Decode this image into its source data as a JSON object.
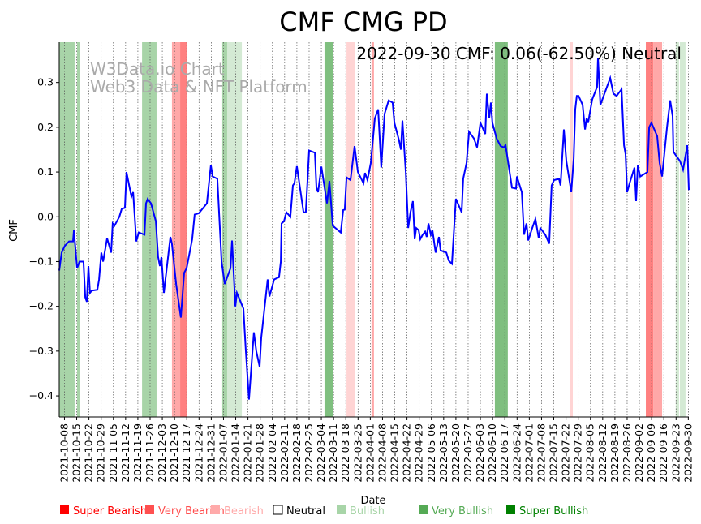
{
  "chart_data": {
    "type": "line",
    "title": "CMF CMG PD",
    "annotation": "2022-09-30 CMF: 0.06(-62.50%) Neutral",
    "watermark": [
      "W3Data.io Chart",
      "Web3 Data & NFT Platform"
    ],
    "xlabel": "Date",
    "ylabel": "CMF",
    "x_unit": "days since 2021-10-05",
    "xlim": [
      0,
      360.3
    ],
    "ylim": [
      -0.447,
      0.39
    ],
    "yticks": [
      0.3,
      0.2,
      0.1,
      0.0,
      -0.1,
      -0.2,
      -0.3,
      -0.4
    ],
    "ytick_labels": [
      "0.3",
      "0.2",
      "0.1",
      "0.0",
      "−0.1",
      "−0.2",
      "−0.3",
      "−0.4"
    ],
    "xtick_first_day": 3,
    "xtick_step_days": 7,
    "xtick_labels": [
      "2021-10-08",
      "2021-10-15",
      "2021-10-22",
      "2021-10-29",
      "2021-11-05",
      "2021-11-12",
      "2021-11-19",
      "2021-11-26",
      "2021-12-03",
      "2021-12-10",
      "2021-12-17",
      "2021-12-24",
      "2021-12-31",
      "2022-01-07",
      "2022-01-14",
      "2022-01-21",
      "2022-01-28",
      "2022-02-04",
      "2022-02-11",
      "2022-02-18",
      "2022-02-25",
      "2022-03-04",
      "2022-03-11",
      "2022-03-18",
      "2022-03-25",
      "2022-04-01",
      "2022-04-08",
      "2022-04-15",
      "2022-04-22",
      "2022-04-29",
      "2022-05-06",
      "2022-05-13",
      "2022-05-20",
      "2022-05-27",
      "2022-06-03",
      "2022-06-10",
      "2022-06-17",
      "2022-06-24",
      "2022-07-01",
      "2022-07-08",
      "2022-07-15",
      "2022-07-22",
      "2022-07-29",
      "2022-08-05",
      "2022-08-12",
      "2022-08-19",
      "2022-08-26",
      "2022-09-02",
      "2022-09-09",
      "2022-09-16",
      "2022-09-23",
      "2022-09-30"
    ],
    "series": [
      {
        "name": "CMF",
        "color": "#0000ff",
        "x": [
          0,
          1.4,
          3.2,
          5.6,
          7.9,
          8.4,
          10.2,
          11.6,
          13.9,
          14.9,
          15.8,
          16.7,
          17.6,
          18.6,
          21.8,
          22.8,
          24.1,
          25.1,
          27.4,
          29.7,
          30.6,
          31.6,
          34.4,
          35.8,
          37.6,
          38.5,
          41.3,
          42.3,
          44.1,
          45.5,
          48.8,
          49.7,
          50.6,
          52.5,
          55.3,
          56.6,
          57.6,
          58.5,
          59.9,
          63.6,
          64.5,
          66.9,
          69.6,
          71.5,
          72.9,
          76.1,
          77.5,
          79.9,
          84.5,
          86.8,
          87.8,
          90.5,
          92.9,
          94.7,
          98,
          98.9,
          100.8,
          101.7,
          105.4,
          106.8,
          108.6,
          111.4,
          112.8,
          114.7,
          115.6,
          119.3,
          120.3,
          123,
          125.8,
          126.8,
          127.2,
          128.6,
          130,
          132.3,
          133.7,
          134.6,
          136,
          139.8,
          141.1,
          143,
          146.3,
          147.2,
          148.1,
          150,
          153.2,
          154.6,
          156.5,
          161.1,
          162.5,
          163.4,
          164.4,
          166.7,
          169,
          170.9,
          174.1,
          175,
          176.4,
          178.3,
          180.6,
          182.5,
          184.3,
          186.2,
          188.5,
          190.8,
          191.8,
          194.5,
          195.5,
          196.4,
          198.3,
          199.7,
          201,
          202.4,
          203.4,
          204.3,
          205.7,
          206.6,
          208,
          209.4,
          210.3,
          211.3,
          212.6,
          213.6,
          215.4,
          217.3,
          218.2,
          221.5,
          222.9,
          224.7,
          227,
          230.3,
          231.2,
          233.1,
          234.5,
          237.3,
          239.1,
          241,
          243.8,
          244.7,
          246.1,
          247,
          247.9,
          250.3,
          252.6,
          254.4,
          255.4,
          259.1,
          261.4,
          261.9,
          264.7,
          266,
          267.4,
          268.4,
          270.7,
          272.5,
          274.4,
          275.3,
          278.1,
          280.4,
          281.8,
          283.2,
          286,
          286.9,
          288.8,
          290.2,
          293,
          294.4,
          295.3,
          296.2,
          297.2,
          299.5,
          300.9,
          301.8,
          302.7,
          305,
          307.8,
          308.3,
          309.7,
          312,
          315.3,
          317.1,
          319,
          321.8,
          323.2,
          324.1,
          325,
          326.4,
          329.2,
          330.1,
          331.1,
          332.5,
          336.6,
          337.6,
          338.9,
          342.2,
          343.6,
          345,
          347.8,
          349.6,
          351,
          351.5,
          353.3,
          355.2,
          357,
          359.4,
          360.3
        ],
        "values": [
          -0.12,
          -0.08,
          -0.065,
          -0.055,
          -0.055,
          -0.03,
          -0.115,
          -0.1,
          -0.1,
          -0.18,
          -0.19,
          -0.11,
          -0.17,
          -0.165,
          -0.163,
          -0.14,
          -0.08,
          -0.1,
          -0.048,
          -0.08,
          -0.015,
          -0.02,
          0,
          0.018,
          0.02,
          0.1,
          0.045,
          0.055,
          -0.055,
          -0.035,
          -0.04,
          0.03,
          0.04,
          0.03,
          -0.01,
          -0.09,
          -0.11,
          -0.09,
          -0.17,
          -0.045,
          -0.06,
          -0.15,
          -0.225,
          -0.125,
          -0.115,
          -0.05,
          0.005,
          0.008,
          0.03,
          0.115,
          0.09,
          0.085,
          -0.1,
          -0.15,
          -0.115,
          -0.053,
          -0.2,
          -0.17,
          -0.205,
          -0.3,
          -0.408,
          -0.258,
          -0.3,
          -0.335,
          -0.27,
          -0.14,
          -0.178,
          -0.14,
          -0.135,
          -0.1,
          -0.015,
          -0.01,
          0.01,
          0,
          0.07,
          0.075,
          0.113,
          0.01,
          0.01,
          0.148,
          0.143,
          0.065,
          0.055,
          0.112,
          0.03,
          0.08,
          -0.02,
          -0.035,
          0.015,
          0.016,
          0.088,
          0.082,
          0.158,
          0.1,
          0.075,
          0.098,
          0.082,
          0.12,
          0.22,
          0.24,
          0.11,
          0.23,
          0.26,
          0.255,
          0.21,
          0.17,
          0.15,
          0.215,
          0.1,
          -0.025,
          0.01,
          0.035,
          -0.05,
          -0.025,
          -0.03,
          -0.05,
          -0.04,
          -0.033,
          -0.045,
          -0.015,
          -0.04,
          -0.03,
          -0.08,
          -0.045,
          -0.075,
          -0.08,
          -0.098,
          -0.105,
          0.04,
          0.01,
          0.085,
          0.12,
          0.19,
          0.175,
          0.155,
          0.21,
          0.185,
          0.275,
          0.22,
          0.255,
          0.21,
          0.175,
          0.158,
          0.155,
          0.16,
          0.065,
          0.063,
          0.09,
          0.055,
          -0.04,
          -0.015,
          -0.053,
          -0.025,
          -0.005,
          -0.048,
          -0.025,
          -0.04,
          -0.06,
          0.07,
          0.082,
          0.085,
          0.07,
          0.195,
          0.125,
          0.055,
          0.13,
          0.24,
          0.27,
          0.27,
          0.25,
          0.195,
          0.22,
          0.21,
          0.262,
          0.29,
          0.355,
          0.25,
          0.275,
          0.31,
          0.275,
          0.27,
          0.285,
          0.16,
          0.14,
          0.055,
          0.075,
          0.11,
          0.035,
          0.115,
          0.09,
          0.1,
          0.2,
          0.21,
          0.18,
          0.12,
          0.09,
          0.2,
          0.26,
          0.225,
          0.145,
          0.135,
          0.125,
          0.105,
          0.16,
          0.06
        ]
      }
    ],
    "bands": [
      {
        "start": 0,
        "end": 8.8,
        "category": "Very Bullish"
      },
      {
        "start": 10.2,
        "end": 11.6,
        "category": "Very Bullish"
      },
      {
        "start": 47.4,
        "end": 55.7,
        "category": "Very Bullish"
      },
      {
        "start": 64.5,
        "end": 69.2,
        "category": "Very Bearish"
      },
      {
        "start": 69.2,
        "end": 72.9,
        "category": "Super Bearish"
      },
      {
        "start": 93.3,
        "end": 96.1,
        "category": "Very Bullish"
      },
      {
        "start": 96.1,
        "end": 104.5,
        "category": "Bullish"
      },
      {
        "start": 151.8,
        "end": 156.5,
        "category": "Super Bullish"
      },
      {
        "start": 164.4,
        "end": 169,
        "category": "Bearish"
      },
      {
        "start": 178.7,
        "end": 180.1,
        "category": "Very Bearish"
      },
      {
        "start": 249.3,
        "end": 256.7,
        "category": "Super Bullish"
      },
      {
        "start": 292.5,
        "end": 293.9,
        "category": "Bearish"
      },
      {
        "start": 335.7,
        "end": 339.9,
        "category": "Super Bearish"
      },
      {
        "start": 339.9,
        "end": 345,
        "category": "Very Bearish"
      },
      {
        "start": 352.8,
        "end": 354.7,
        "category": "Bullish"
      },
      {
        "start": 355.2,
        "end": 358.4,
        "category": "Bullish"
      }
    ],
    "legend": [
      {
        "label": "Super Bearish",
        "color": "#ff0000",
        "band": "#ff8080",
        "text": "#ff0000"
      },
      {
        "label": "Very Bearish",
        "color": "#ff5050",
        "band": "#ffa8a8",
        "text": "#ff5050"
      },
      {
        "label": "Bearish",
        "color": "#ffaaaa",
        "band": "#ffd4d4",
        "text": "#ffaaaa"
      },
      {
        "label": "Neutral",
        "color": "none",
        "band": "none",
        "text": "#000000"
      },
      {
        "label": "Bullish",
        "color": "#a8d5a8",
        "band": "#d4ead4",
        "text": "#a8d5a8"
      },
      {
        "label": "Very Bullish",
        "color": "#55aa55",
        "band": "#a8d4a8",
        "text": "#55aa55"
      },
      {
        "label": "Super Bullish",
        "color": "#008000",
        "band": "#7fbf7f",
        "text": "#008000"
      }
    ],
    "legend_placement": "bottom"
  }
}
